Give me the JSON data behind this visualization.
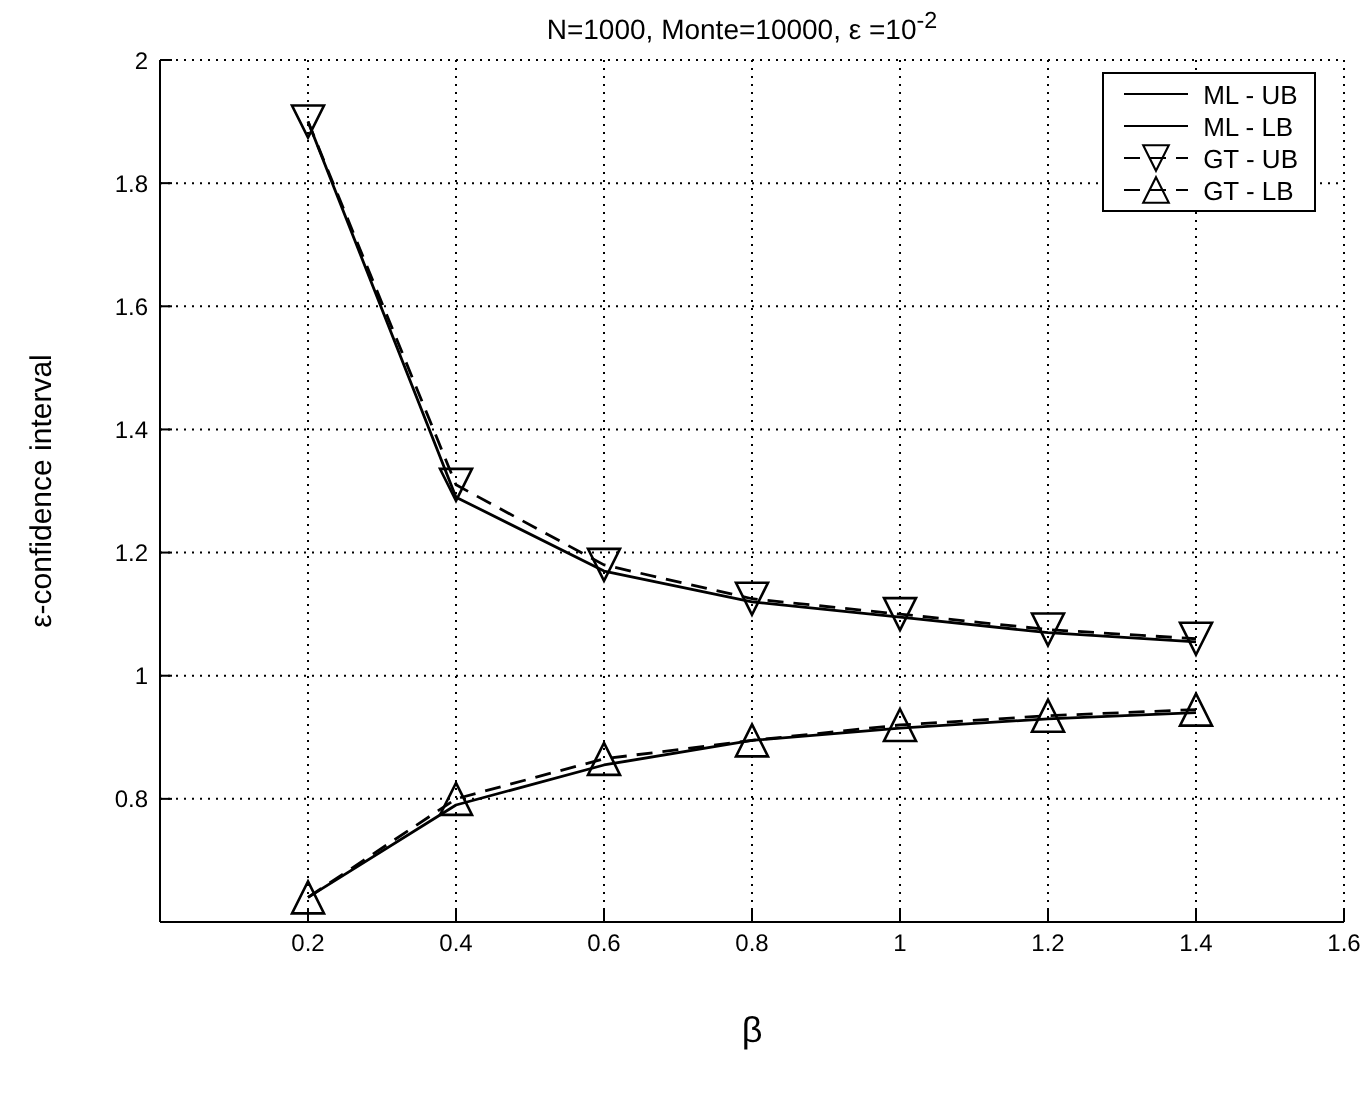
{
  "chart_data": {
    "type": "line",
    "title": "N=1000, Monte=10000, ε =10$^{-2}$",
    "xlabel": "β",
    "ylabel": "ε-confidence interval",
    "x": [
      0.2,
      0.4,
      0.6,
      0.8,
      1,
      1.2,
      1.4
    ],
    "series": [
      {
        "name": "ML - UB",
        "color": "#000000",
        "values": [
          1.9,
          1.29,
          1.17,
          1.12,
          1.095,
          1.07,
          1.055
        ],
        "line_style": "solid",
        "marker": "none"
      },
      {
        "name": "ML - LB",
        "color": "#000000",
        "values": [
          0.64,
          0.79,
          0.855,
          0.895,
          0.915,
          0.93,
          0.94
        ],
        "line_style": "solid",
        "marker": "none"
      },
      {
        "name": "GT - UB",
        "color": "#000000",
        "values": [
          1.9,
          1.31,
          1.18,
          1.125,
          1.1,
          1.075,
          1.06
        ],
        "line_style": "dashed",
        "marker": "triangle_down"
      },
      {
        "name": "GT - LB",
        "color": "#000000",
        "values": [
          0.64,
          0.8,
          0.865,
          0.895,
          0.92,
          0.935,
          0.945
        ],
        "line_style": "dashed",
        "marker": "triangle"
      }
    ],
    "xlim": [
      0,
      1.6
    ],
    "xticks": [
      0.2,
      0.4,
      0.6,
      0.8,
      1,
      1.2,
      1.4,
      1.6
    ],
    "ylim": [
      0.6,
      2
    ],
    "yticks": [
      0.8,
      1,
      1.2,
      1.4,
      1.6,
      1.8,
      2
    ],
    "grid": true,
    "legend": "top right"
  }
}
